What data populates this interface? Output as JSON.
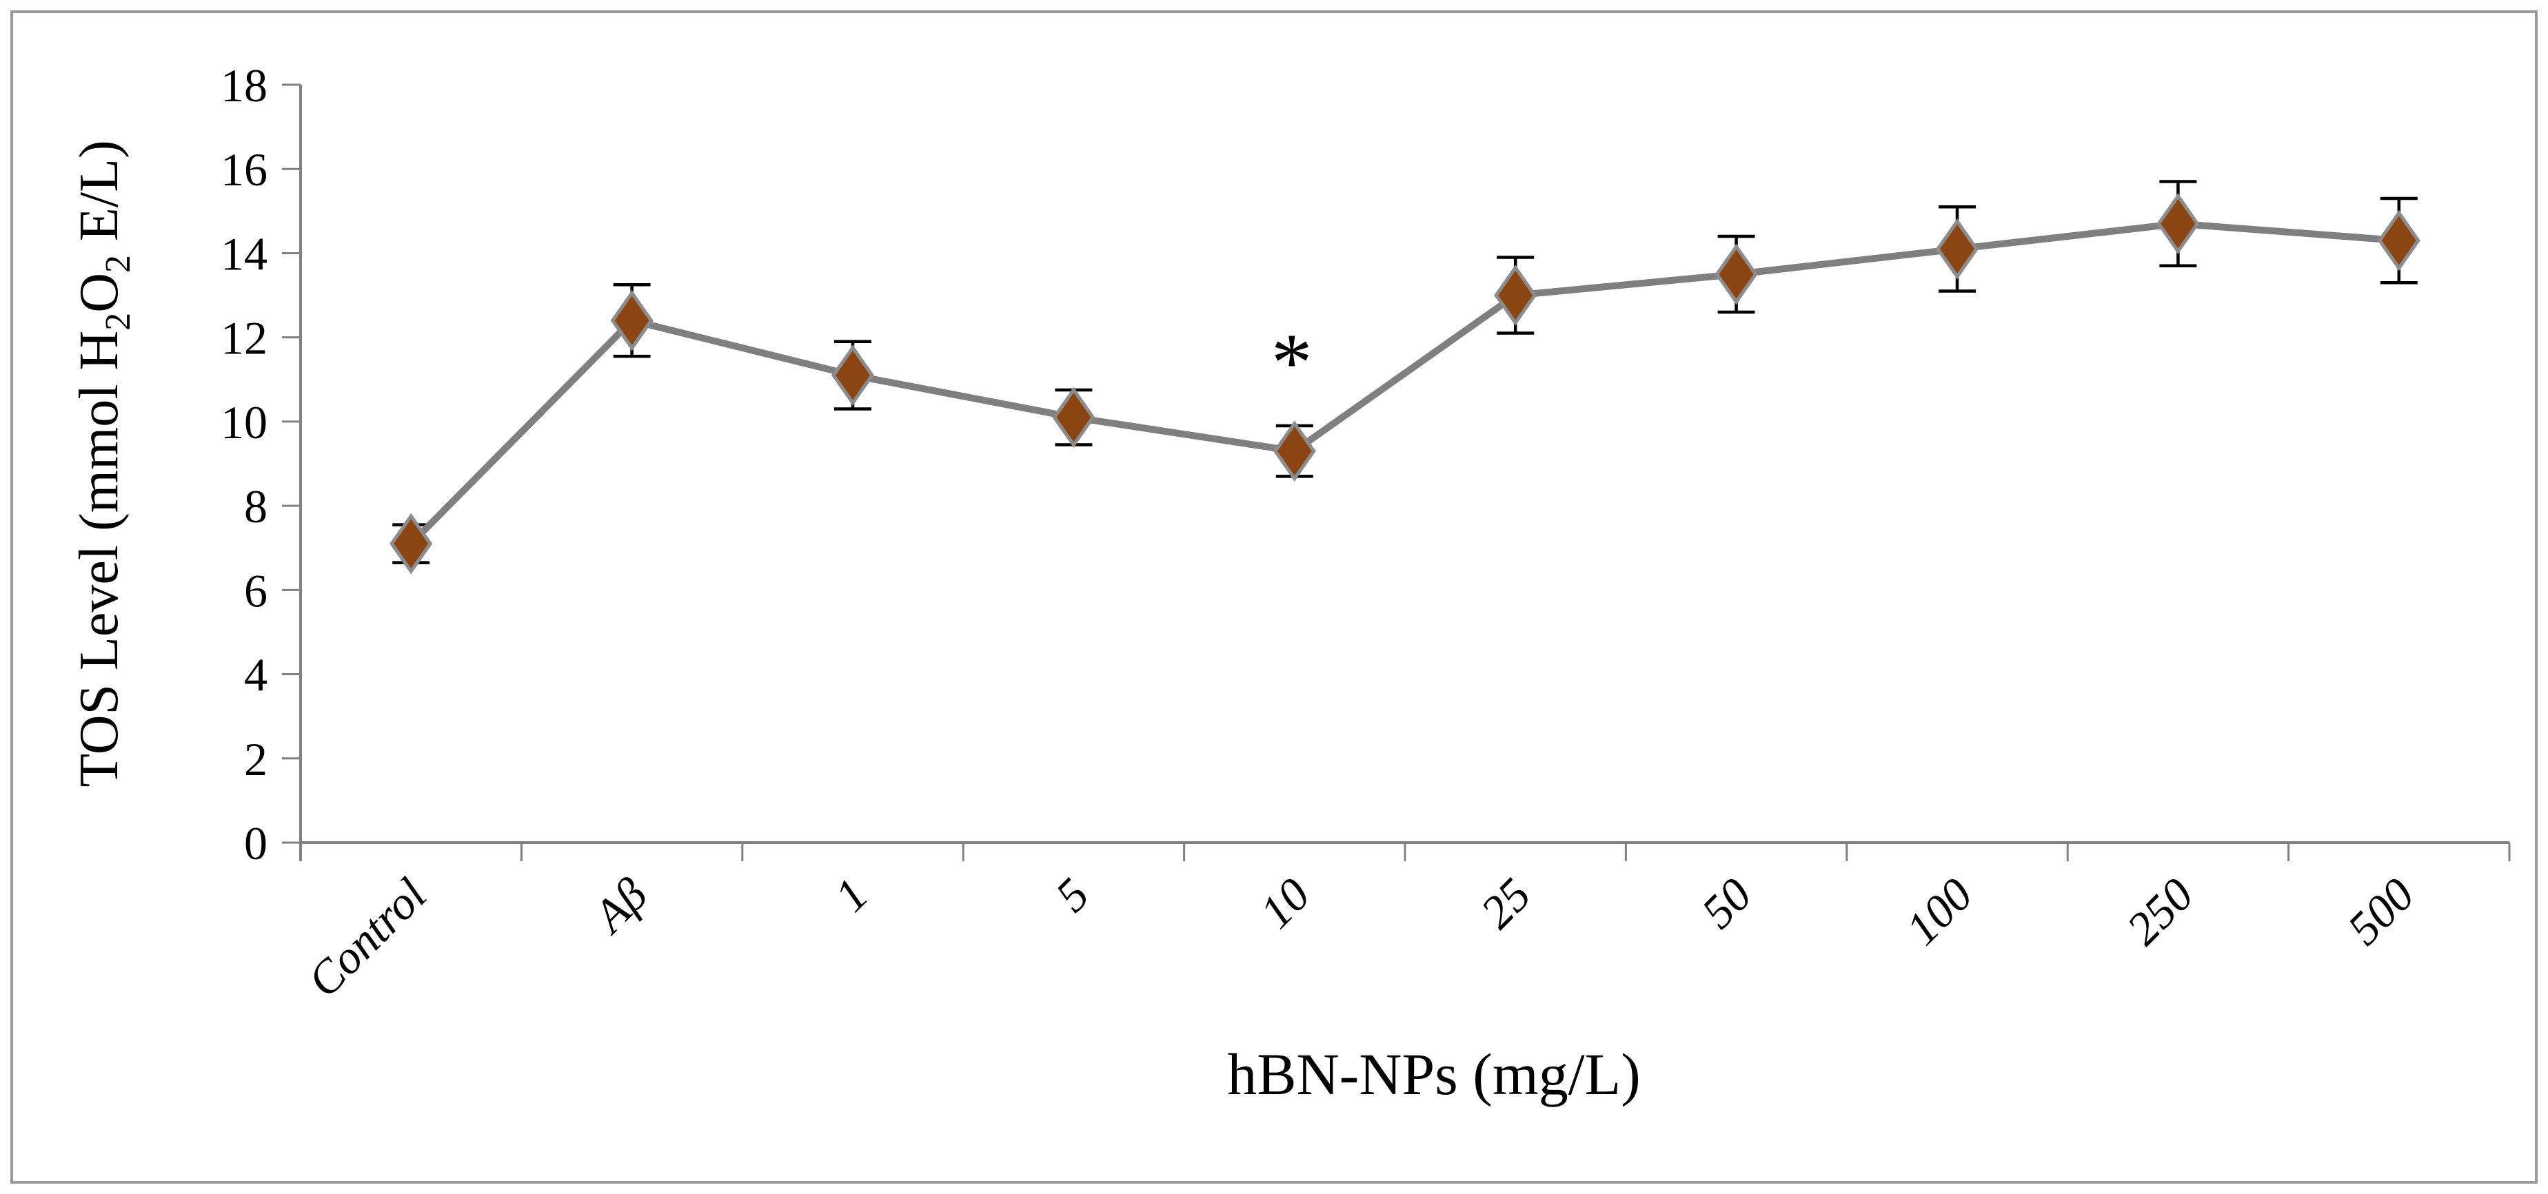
{
  "figure": {
    "description": "Line chart of total oxidant status (TOS) versus hBN nanoparticle concentration with error bars and a significance asterisk",
    "background_color": "#FFFFFF",
    "border_color": "#9A9A9A"
  },
  "chart_data": {
    "type": "line",
    "title": "",
    "categories": [
      "Control",
      "Aβ",
      "1",
      "5",
      "10",
      "25",
      "50",
      "100",
      "250",
      "500"
    ],
    "series": [
      {
        "name": "TOS Level",
        "values": [
          7.1,
          12.4,
          11.1,
          10.1,
          9.3,
          13.0,
          13.5,
          14.1,
          14.7,
          14.3
        ],
        "errors": [
          0.45,
          0.85,
          0.8,
          0.65,
          0.6,
          0.9,
          0.9,
          1.0,
          1.0,
          1.0
        ]
      }
    ],
    "significance": {
      "index": 4,
      "category": "10",
      "symbol": "*"
    },
    "xlabel": "hBN-NPs (mg/L)",
    "ylabel": "TOS Level (mmol H₂O₂ E/L)",
    "ylabel_parts": [
      {
        "t": "TOS Level (mmol H"
      },
      {
        "t": "2",
        "sub": true
      },
      {
        "t": "O"
      },
      {
        "t": "2",
        "sub": true
      },
      {
        "t": " E/L)"
      }
    ],
    "ylim": [
      0,
      18
    ],
    "ytick_step": 2,
    "ytick_labels": [
      "0",
      "2",
      "4",
      "6",
      "8",
      "10",
      "12",
      "14",
      "16",
      "18"
    ],
    "grid": false,
    "legend_position": "none",
    "marker_style": "diamond",
    "x_label_rotation_deg": -45,
    "colors": {
      "marker": "#8B4513",
      "marker_outline": "#8C8C8C",
      "line": "#7F7F7F",
      "axis": "#808080",
      "error_bar": "#000000",
      "text": "#000000",
      "border": "#9A9A9A",
      "background": "#FFFFFF"
    }
  }
}
